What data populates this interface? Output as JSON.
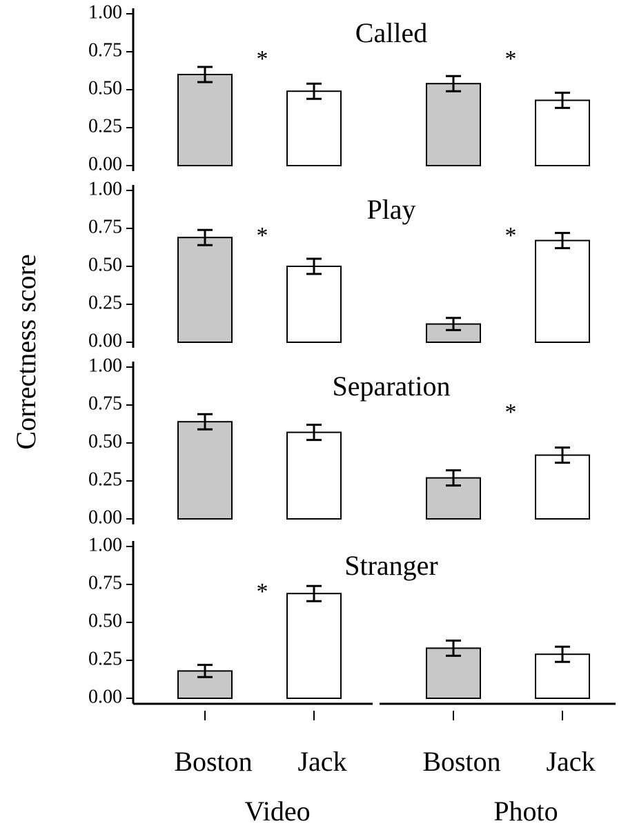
{
  "ylabel": "Correctness score",
  "categories": [
    "Boston",
    "Jack",
    "Boston",
    "Jack"
  ],
  "groups": [
    "Video",
    "Photo"
  ],
  "colors": [
    "#c8c8c8",
    "#ffffff",
    "#c8c8c8",
    "#ffffff"
  ],
  "chart_data": [
    {
      "type": "bar",
      "title": "Called",
      "values": [
        0.6,
        0.49,
        0.54,
        0.43
      ],
      "errors": [
        0.05,
        0.05,
        0.05,
        0.05
      ],
      "ylim": [
        0,
        1
      ],
      "yticks": [
        {
          "value": 0,
          "label": "0.00"
        },
        {
          "value": 0.25,
          "label": "0.25"
        },
        {
          "value": 0.5,
          "label": "0.50"
        },
        {
          "value": 0.75,
          "label": "0.75"
        },
        {
          "value": 1,
          "label": "1.00"
        }
      ],
      "annotations": [
        {
          "text": "*",
          "group": "Video"
        },
        {
          "text": "*",
          "group": "Photo"
        }
      ]
    },
    {
      "type": "bar",
      "title": "Play",
      "values": [
        0.69,
        0.5,
        0.12,
        0.67
      ],
      "errors": [
        0.05,
        0.05,
        0.04,
        0.05
      ],
      "ylim": [
        0,
        1
      ],
      "yticks": [
        {
          "value": 0,
          "label": "0.00"
        },
        {
          "value": 0.25,
          "label": "0.25"
        },
        {
          "value": 0.5,
          "label": "0.50"
        },
        {
          "value": 0.75,
          "label": "0.75"
        },
        {
          "value": 1,
          "label": "1.00"
        }
      ],
      "annotations": [
        {
          "text": "*",
          "group": "Video"
        },
        {
          "text": "*",
          "group": "Photo"
        }
      ]
    },
    {
      "type": "bar",
      "title": "Separation",
      "values": [
        0.64,
        0.57,
        0.27,
        0.42
      ],
      "errors": [
        0.05,
        0.05,
        0.05,
        0.05
      ],
      "ylim": [
        0,
        1
      ],
      "yticks": [
        {
          "value": 0,
          "label": "0.00"
        },
        {
          "value": 0.25,
          "label": "0.25"
        },
        {
          "value": 0.5,
          "label": "0.50"
        },
        {
          "value": 0.75,
          "label": "0.75"
        },
        {
          "value": 1,
          "label": "1.00"
        }
      ],
      "annotations": [
        {
          "text": "*",
          "group": "Photo"
        }
      ]
    },
    {
      "type": "bar",
      "title": "Stranger",
      "values": [
        0.18,
        0.69,
        0.33,
        0.29
      ],
      "errors": [
        0.04,
        0.05,
        0.05,
        0.05
      ],
      "ylim": [
        0,
        1
      ],
      "yticks": [
        {
          "value": 0,
          "label": "0.00"
        },
        {
          "value": 0.25,
          "label": "0.25"
        },
        {
          "value": 0.5,
          "label": "0.50"
        },
        {
          "value": 0.75,
          "label": "0.75"
        },
        {
          "value": 1,
          "label": "1.00"
        }
      ],
      "annotations": [
        {
          "text": "*",
          "group": "Video"
        }
      ]
    }
  ]
}
